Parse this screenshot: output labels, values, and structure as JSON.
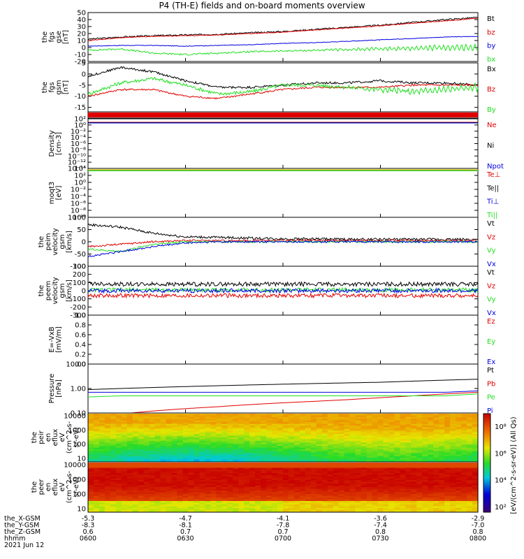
{
  "title": "P4 (TH-E) fields and on-board moments overview",
  "colors": {
    "black": "#000000",
    "red": "#e00000",
    "green": "#20e020",
    "blue": "#0000e0",
    "yellow": "#d8d800",
    "frame": "#000000"
  },
  "chart_data": [
    {
      "type": "line",
      "ylabel": [
        "the",
        "fgs",
        "gse",
        "[nT]"
      ],
      "ylim": [
        -20,
        50
      ],
      "yticks": [
        "50",
        "40",
        "30",
        "20",
        "10",
        "0",
        "-10",
        "-20"
      ],
      "ytick_values": [
        50,
        40,
        30,
        20,
        10,
        0,
        -10,
        -20
      ],
      "series": [
        {
          "name": "Bt",
          "color": "black",
          "values": [
            12,
            15,
            17,
            18,
            19,
            21,
            23,
            26,
            29,
            32,
            36,
            40,
            43
          ],
          "noise": 1.0
        },
        {
          "name": "bz",
          "color": "red",
          "values": [
            10,
            14,
            16,
            17,
            18,
            20,
            22,
            25,
            28,
            31,
            35,
            38,
            42
          ],
          "noise": 0.5
        },
        {
          "name": "by",
          "color": "blue",
          "values": [
            2,
            3,
            3,
            2,
            3,
            4,
            6,
            7,
            9,
            11,
            13,
            15,
            16
          ],
          "noise": 0.4
        },
        {
          "name": "bx",
          "color": "green",
          "values": [
            -4,
            -2,
            -8,
            -10,
            -8,
            -6,
            -5,
            -4,
            -3,
            -2,
            -1,
            0,
            0
          ],
          "noise": 1.2,
          "wave": "late"
        }
      ]
    },
    {
      "type": "line",
      "ylabel": [
        "the",
        "fgs",
        "gsm",
        "[nT]"
      ],
      "ylim": [
        -17,
        5
      ],
      "yticks": [
        "5",
        "0",
        "-5",
        "-10",
        "-15"
      ],
      "ytick_values": [
        5,
        0,
        -5,
        -10,
        -15
      ],
      "series": [
        {
          "name": "Bx",
          "color": "black",
          "values": [
            -1,
            3,
            1,
            -3,
            -6,
            -6,
            -5,
            -4,
            -4,
            -3,
            -4,
            -4,
            -5
          ],
          "noise": 0.5
        },
        {
          "name": "Bz",
          "color": "red",
          "values": [
            -10,
            -7,
            -7,
            -10,
            -11,
            -9,
            -7,
            -6,
            -6,
            -6,
            -5,
            -5,
            -5
          ],
          "noise": 0.4
        },
        {
          "name": "By",
          "color": "green",
          "values": [
            -9,
            -4,
            -2,
            -5,
            -9,
            -8,
            -5,
            -5,
            -6,
            -7,
            -8,
            -7,
            -6
          ],
          "noise": 0.8,
          "wave": "late"
        }
      ]
    },
    {
      "type": "quality-flag",
      "color": "red"
    },
    {
      "type": "line",
      "ylabel": [
        "Density",
        "[cm-3]"
      ],
      "ylog": true,
      "yticks": [
        "10²",
        "10⁰",
        "10⁻²",
        "10⁻⁴",
        "10⁻⁶",
        "10⁻⁸",
        "10⁻¹⁰",
        "10⁻¹²",
        "10⁻¹⁴"
      ],
      "ytick_values": [
        2,
        0,
        -2,
        -4,
        -6,
        -8,
        -10,
        -12,
        -14
      ],
      "series": [
        {
          "name": "Ne",
          "color": "red"
        },
        {
          "name": "Ni",
          "color": "black"
        },
        {
          "name": "Npot",
          "color": "blue"
        }
      ]
    },
    {
      "type": "line",
      "ylabel": [
        "moqt3",
        "[eV]"
      ],
      "ylog": true,
      "yticks": [
        "10⁴",
        "10²",
        "10⁰",
        "10⁻²",
        "10⁻⁴",
        "10⁻⁶",
        "10⁻⁸",
        "10⁻¹⁰"
      ],
      "ytick_values": [
        4,
        2,
        0,
        -2,
        -4,
        -6,
        -8,
        -10
      ],
      "series": [
        {
          "name": "Te⊥",
          "color": "red"
        },
        {
          "name": "Te||",
          "color": "black"
        },
        {
          "name": "Ti⊥",
          "color": "blue"
        },
        {
          "name": "Ti||",
          "color": "green"
        }
      ]
    },
    {
      "type": "line",
      "ylabel": [
        "the",
        "peim",
        "velocity",
        "gsm",
        "[km/s]"
      ],
      "ylim": [
        -100,
        100
      ],
      "yticks": [
        "100",
        "50",
        "0",
        "-50",
        "-100"
      ],
      "ytick_values": [
        100,
        50,
        0,
        -50,
        -100
      ],
      "series": [
        {
          "name": "Vt",
          "color": "black",
          "values": [
            70,
            60,
            35,
            20,
            18,
            15,
            12,
            12,
            10,
            10,
            10,
            10,
            10
          ],
          "noise": 5
        },
        {
          "name": "Vz",
          "color": "red",
          "values": [
            -20,
            -10,
            0,
            5,
            5,
            5,
            5,
            5,
            5,
            5,
            5,
            5,
            5
          ],
          "noise": 4
        },
        {
          "name": "Vy",
          "color": "green",
          "values": [
            -30,
            -40,
            -10,
            0,
            0,
            0,
            0,
            0,
            0,
            0,
            0,
            0,
            0
          ],
          "noise": 4
        },
        {
          "name": "Vx",
          "color": "blue",
          "values": [
            -60,
            -40,
            -20,
            -5,
            0,
            0,
            0,
            0,
            0,
            0,
            0,
            0,
            0
          ],
          "noise": 4
        }
      ]
    },
    {
      "type": "line",
      "ylabel": [
        "the",
        "peem",
        "velocity",
        "gsm",
        "[km/s]"
      ],
      "ylim": [
        -300,
        300
      ],
      "yticks": [
        "300",
        "200",
        "100",
        "0",
        "-100",
        "-200",
        "-300"
      ],
      "ytick_values": [
        300,
        200,
        100,
        0,
        -100,
        -200,
        -300
      ],
      "series": [
        {
          "name": "Vt",
          "color": "black",
          "values": [
            90,
            80,
            80,
            80,
            80,
            80,
            80,
            80,
            80,
            80,
            80,
            80,
            80
          ],
          "noise": 25
        },
        {
          "name": "Vz",
          "color": "red",
          "values": [
            -60,
            -60,
            -60,
            -60,
            -60,
            -60,
            -60,
            -60,
            -60,
            -60,
            -60,
            -60,
            -60
          ],
          "noise": 25
        },
        {
          "name": "Vy",
          "color": "green",
          "values": [
            10,
            10,
            10,
            10,
            10,
            10,
            10,
            10,
            10,
            10,
            10,
            10,
            10
          ],
          "noise": 25
        },
        {
          "name": "Vx",
          "color": "blue",
          "values": [
            0,
            0,
            0,
            0,
            0,
            0,
            0,
            0,
            0,
            0,
            0,
            0,
            0
          ],
          "noise": 25
        }
      ]
    },
    {
      "type": "line",
      "ylabel": [
        "E=-VxB",
        "[mV/m]"
      ],
      "ylim": [
        0,
        1
      ],
      "yticks": [
        "1.0",
        "0.8",
        "0.6",
        "0.4",
        "0.2",
        "0.0"
      ],
      "ytick_values": [
        1,
        0.8,
        0.6,
        0.4,
        0.2,
        0
      ],
      "series": [
        {
          "name": "Ez",
          "color": "red"
        },
        {
          "name": "Ey",
          "color": "green"
        },
        {
          "name": "Ex",
          "color": "blue"
        }
      ]
    },
    {
      "type": "line",
      "ylabel": [
        "Pressure",
        "[nPa]"
      ],
      "ylog": true,
      "yticks": [
        "10.00",
        "1.00",
        "0.10"
      ],
      "ytick_values": [
        1,
        0,
        -1
      ],
      "series": [
        {
          "name": "Pt",
          "color": "black",
          "values": [
            0.9,
            1.0,
            1.1,
            1.2,
            1.3,
            1.4,
            1.5,
            1.6,
            1.7,
            1.8,
            2.0,
            2.2,
            2.4
          ]
        },
        {
          "name": "Pb",
          "color": "red",
          "values": [
            0.06,
            0.09,
            0.12,
            0.15,
            0.18,
            0.22,
            0.26,
            0.3,
            0.35,
            0.42,
            0.5,
            0.6,
            0.7
          ]
        },
        {
          "name": "Pe",
          "color": "green",
          "values": [
            0.45,
            0.5,
            0.5,
            0.5,
            0.5,
            0.5,
            0.5,
            0.5,
            0.5,
            0.5,
            0.5,
            0.5,
            0.6
          ]
        },
        {
          "name": "Pi",
          "color": "blue",
          "values": [
            0.7,
            0.7,
            0.7,
            0.7,
            0.7,
            0.7,
            0.7,
            0.7,
            0.7,
            0.7,
            0.7,
            0.7,
            0.8
          ]
        }
      ]
    },
    {
      "type": "heatmap",
      "ylabel": [
        "the",
        "peir",
        "en",
        "eflux",
        "eV",
        "(cm^2-s-",
        "sr-eV)"
      ],
      "yticks": [
        "10000",
        "1000",
        "100",
        "10"
      ],
      "ytick_values": [
        4,
        3,
        2,
        1
      ],
      "ylim_log": [
        0.75,
        4.2
      ],
      "profile": "ion"
    },
    {
      "type": "heatmap",
      "ylabel": [
        "the",
        "peer",
        "en",
        "eflux",
        "eV",
        "(cm^2-s-",
        "sr-eV)"
      ],
      "yticks": [
        "10000",
        "1000",
        "100",
        "10"
      ],
      "ytick_values": [
        4,
        3,
        2,
        1
      ],
      "ylim_log": [
        0.75,
        4.2
      ],
      "profile": "electron"
    }
  ],
  "colorbar": {
    "ticks": [
      "10⁸",
      "10⁶",
      "10⁴",
      "10²"
    ],
    "label": "[eV/(cm^2-s-sr-eV)] (All Qs)"
  },
  "xaxis": {
    "tick_labels": [
      "0600",
      "0630",
      "0700",
      "0730",
      "0800"
    ],
    "rows": [
      {
        "name": "the_X-GSM",
        "values": [
          "-5.3",
          "-4.7",
          "-4.1",
          "-3.6",
          "-2.9"
        ]
      },
      {
        "name": "the_Y-GSM",
        "values": [
          "-8.3",
          "-8.1",
          "-7.8",
          "-7.4",
          "-7.0"
        ]
      },
      {
        "name": "the_Z-GSM",
        "values": [
          "0.6",
          "0.7",
          "0.7",
          "0.8",
          "0.8"
        ]
      },
      {
        "name": "hhmm",
        "values": [
          "0600",
          "0630",
          "0700",
          "0730",
          "0800"
        ]
      }
    ],
    "date": "2021 Jun 12"
  }
}
